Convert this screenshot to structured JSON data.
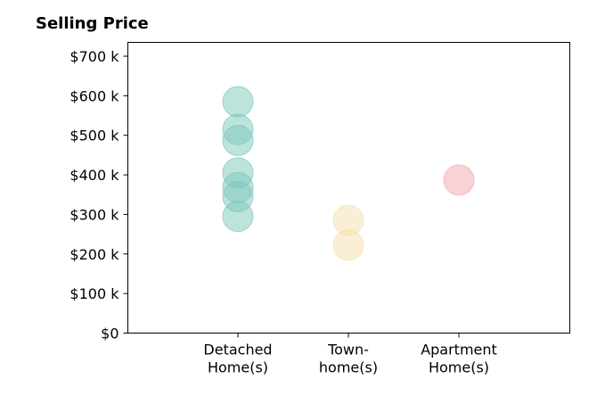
{
  "chart_data": {
    "type": "scatter",
    "title": "Selling Price",
    "categories": [
      {
        "lines": [
          "Detached",
          "Home(s)"
        ]
      },
      {
        "lines": [
          "Town-",
          "home(s)"
        ]
      },
      {
        "lines": [
          "Apartment",
          "Home(s)"
        ]
      }
    ],
    "series": [
      {
        "category_index": 0,
        "color": "#7cc8bc",
        "values": [
          585000,
          515000,
          487000,
          405000,
          368000,
          345000,
          295000
        ]
      },
      {
        "category_index": 1,
        "color": "#f6dfae",
        "values": [
          285000,
          222000
        ]
      },
      {
        "category_index": 2,
        "color": "#f4a6ae",
        "values": [
          387000
        ]
      }
    ],
    "y_ticks": [
      {
        "value": 0,
        "label": "$0"
      },
      {
        "value": 100000,
        "label": "$100 k"
      },
      {
        "value": 200000,
        "label": "$200 k"
      },
      {
        "value": 300000,
        "label": "$300 k"
      },
      {
        "value": 400000,
        "label": "$400 k"
      },
      {
        "value": 500000,
        "label": "$500 k"
      },
      {
        "value": 600000,
        "label": "$600 k"
      },
      {
        "value": 700000,
        "label": "$700 k"
      }
    ],
    "ylim": [
      0,
      735000
    ],
    "grid": false,
    "legend": "none"
  }
}
